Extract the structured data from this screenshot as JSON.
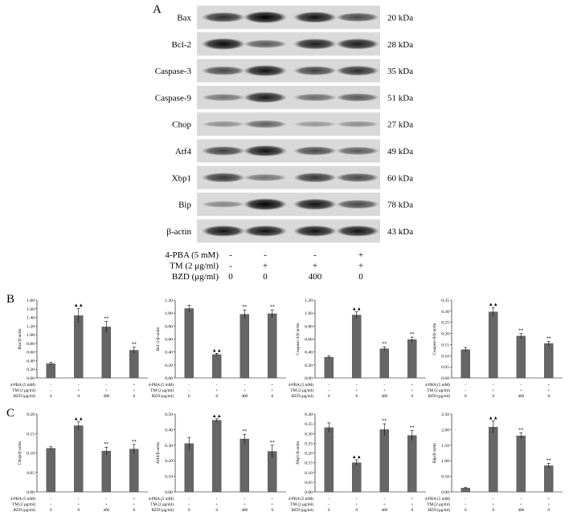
{
  "panels": {
    "a": "A",
    "b": "B",
    "c": "C"
  },
  "blot": {
    "proteins": [
      {
        "name": "Bax",
        "kda": "20 kDa",
        "intensity": [
          0.75,
          1.0,
          0.9,
          0.6
        ]
      },
      {
        "name": "Bcl-2",
        "kda": "28 kDa",
        "intensity": [
          0.95,
          0.5,
          0.85,
          0.85
        ]
      },
      {
        "name": "Caspase-3",
        "kda": "35 kDa",
        "intensity": [
          0.6,
          0.9,
          0.65,
          0.75
        ]
      },
      {
        "name": "Caspase-9",
        "kda": "51 kDa",
        "intensity": [
          0.35,
          0.85,
          0.4,
          0.5
        ]
      },
      {
        "name": "Chop",
        "kda": "27 kDa",
        "intensity": [
          0.2,
          0.45,
          0.15,
          0.2
        ]
      },
      {
        "name": "Atf4",
        "kda": "49 kDa",
        "intensity": [
          0.65,
          0.9,
          0.6,
          0.5
        ]
      },
      {
        "name": "Xbp1",
        "kda": "60 kDa",
        "intensity": [
          0.7,
          0.35,
          0.7,
          0.6
        ]
      },
      {
        "name": "Bip",
        "kda": "78 kDa",
        "intensity": [
          0.25,
          1.0,
          0.9,
          0.6
        ]
      },
      {
        "name": "β-actin",
        "kda": "43 kDa",
        "intensity": [
          0.9,
          0.9,
          0.9,
          0.9
        ]
      }
    ],
    "treatments": [
      {
        "label": "4-PBA (5 mM)",
        "values": [
          "-",
          "-",
          "-",
          "+"
        ]
      },
      {
        "label": "TM (2 μg/ml)",
        "values": [
          "-",
          "+",
          "+",
          "+"
        ]
      },
      {
        "label": "BZD (μg/ml)",
        "values": [
          "0",
          "0",
          "400",
          "0"
        ]
      }
    ]
  },
  "chart_treatments": [
    {
      "label": "4-PBA (5 mM)",
      "values": [
        "-",
        "-",
        "-",
        "+"
      ]
    },
    {
      "label": "TM (2 μg/ml)",
      "values": [
        "-",
        "+",
        "+",
        "+"
      ]
    },
    {
      "label": "BZD (μg/ml)",
      "values": [
        "0",
        "0",
        "400",
        "0"
      ]
    }
  ],
  "chart_data": [
    {
      "type": "bar",
      "panel": "B",
      "ylabel": "Bax/β-actin",
      "ylim": [
        0,
        1.8
      ],
      "yticks": [
        "0.00",
        "0.20",
        "0.40",
        "0.60",
        "0.80",
        "1.00",
        "1.20",
        "1.40",
        "1.60",
        "1.80"
      ],
      "values": [
        0.33,
        1.44,
        1.18,
        0.64
      ],
      "errors": [
        0.03,
        0.17,
        0.13,
        0.07
      ],
      "significance": [
        "",
        "▲▲",
        "**",
        "**"
      ]
    },
    {
      "type": "bar",
      "panel": "B",
      "ylabel": "Bcl-2/β-actin",
      "ylim": [
        0,
        1.2
      ],
      "yticks": [
        "0.00",
        "0.20",
        "0.40",
        "0.60",
        "0.80",
        "1.00",
        "1.20"
      ],
      "values": [
        1.07,
        0.36,
        0.98,
        0.99
      ],
      "errors": [
        0.05,
        0.02,
        0.07,
        0.06
      ],
      "significance": [
        "",
        "▲▲",
        "**",
        "**"
      ]
    },
    {
      "type": "bar",
      "panel": "B",
      "ylabel": "Caspase-3/β-actin",
      "ylim": [
        0,
        1.2
      ],
      "yticks": [
        "0.00",
        "0.20",
        "0.40",
        "0.60",
        "0.80",
        "1.00",
        "1.20"
      ],
      "values": [
        0.32,
        0.97,
        0.45,
        0.59
      ],
      "errors": [
        0.02,
        0.05,
        0.03,
        0.04
      ],
      "significance": [
        "",
        "▲▲",
        "**",
        "**"
      ]
    },
    {
      "type": "bar",
      "panel": "B",
      "ylabel": "Caspase-9/β-actin",
      "ylim": [
        0,
        0.35
      ],
      "yticks": [
        "0.00",
        "0.05",
        "0.10",
        "0.15",
        "0.20",
        "0.25",
        "0.30",
        "0.35"
      ],
      "values": [
        0.127,
        0.297,
        0.188,
        0.155
      ],
      "errors": [
        0.01,
        0.02,
        0.012,
        0.01
      ],
      "significance": [
        "",
        "▲▲",
        "**",
        "**"
      ]
    },
    {
      "type": "bar",
      "panel": "C",
      "ylabel": "Chop/β-actin",
      "ylim": [
        0,
        0.2
      ],
      "yticks": [
        "0.00",
        "0.05",
        "0.10",
        "0.15",
        "0.20"
      ],
      "values": [
        0.112,
        0.17,
        0.105,
        0.11
      ],
      "errors": [
        0.004,
        0.01,
        0.01,
        0.012
      ],
      "significance": [
        "",
        "▲▲",
        "**",
        "**"
      ]
    },
    {
      "type": "bar",
      "panel": "C",
      "ylabel": "Atf4/β-actin",
      "ylim": [
        0,
        0.5
      ],
      "yticks": [
        "0.00",
        "0.10",
        "0.20",
        "0.30",
        "0.40",
        "0.50"
      ],
      "values": [
        0.31,
        0.46,
        0.34,
        0.26
      ],
      "errors": [
        0.04,
        0.01,
        0.03,
        0.04
      ],
      "significance": [
        "",
        "▲▲",
        "**",
        "**"
      ]
    },
    {
      "type": "bar",
      "panel": "C",
      "ylabel": "Xbp1/β-actin",
      "ylim": [
        0,
        0.4
      ],
      "yticks": [
        "0.00",
        "0.05",
        "0.10",
        "0.15",
        "0.20",
        "0.25",
        "0.30",
        "0.35",
        "0.40"
      ],
      "values": [
        0.33,
        0.15,
        0.32,
        0.29
      ],
      "errors": [
        0.025,
        0.015,
        0.03,
        0.025
      ],
      "significance": [
        "",
        "▲▲",
        "**",
        "**"
      ]
    },
    {
      "type": "bar",
      "panel": "C",
      "ylabel": "Bip/β-actin",
      "ylim": [
        0,
        2.5
      ],
      "yticks": [
        "0.00",
        "0.50",
        "1.00",
        "1.50",
        "2.00",
        "2.50"
      ],
      "values": [
        0.12,
        2.08,
        1.8,
        0.84
      ],
      "errors": [
        0.02,
        0.2,
        0.1,
        0.08
      ],
      "significance": [
        "",
        "▲▲",
        "**",
        "**"
      ]
    }
  ]
}
